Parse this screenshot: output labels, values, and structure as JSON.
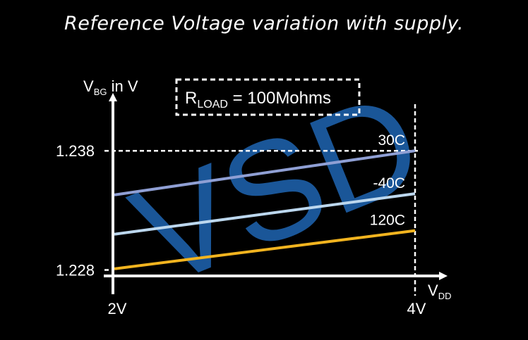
{
  "title": "Reference Voltage variation with supply.",
  "annotation": {
    "main": "R",
    "sub": "LOAD",
    "rest": " = 100Mohms"
  },
  "watermark": "VSD",
  "colors": {
    "watermark": "#1d5fa8",
    "axis": "#ffffff",
    "background": "#000000"
  },
  "chart_data": {
    "type": "line",
    "title": "Reference Voltage variation with supply.",
    "ylabel": {
      "main": "V",
      "sub": "BG",
      "rest": " in V"
    },
    "xlabel": {
      "main": "V",
      "sub": "DD"
    },
    "xlim": [
      2,
      4
    ],
    "ylim": [
      1.2275,
      1.2425
    ],
    "x_ticks": [
      {
        "value": 2,
        "label": "2V"
      },
      {
        "value": 4,
        "label": "4V"
      }
    ],
    "y_ticks": [
      {
        "value": 1.228,
        "label": "1.228"
      },
      {
        "value": 1.238,
        "label": "1.238"
      }
    ],
    "reference_lines": [
      {
        "axis": "y",
        "value": 1.238,
        "style": "dashed"
      },
      {
        "axis": "y",
        "value": 1.228,
        "style": "dashed"
      },
      {
        "axis": "x",
        "value": 4,
        "style": "dashed"
      }
    ],
    "series": [
      {
        "name": "30C",
        "color": "#8f9fd4",
        "x": [
          2,
          4
        ],
        "y": [
          1.2343,
          1.238
        ]
      },
      {
        "name": "-40C",
        "color": "#bcd7ee",
        "x": [
          2,
          4
        ],
        "y": [
          1.231,
          1.2344
        ]
      },
      {
        "name": "120C",
        "color": "#f2b41f",
        "x": [
          2,
          4
        ],
        "y": [
          1.2281,
          1.2313
        ]
      }
    ]
  }
}
